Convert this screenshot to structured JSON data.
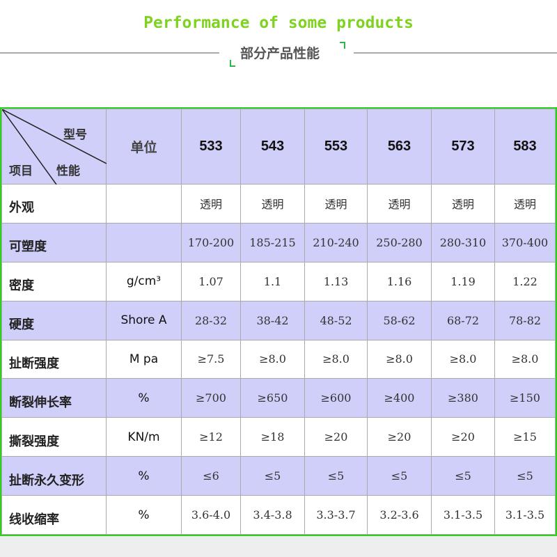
{
  "title": "Performance of some products",
  "subtitle": "部分产品性能",
  "table": {
    "corner": {
      "model": "型号",
      "item": "项目",
      "property": "性能"
    },
    "unit_header": "单位",
    "models": [
      "533",
      "543",
      "553",
      "563",
      "573",
      "583"
    ],
    "rows": [
      {
        "label": "外观",
        "unit": "",
        "values": [
          "透明",
          "透明",
          "透明",
          "透明",
          "透明",
          "透明"
        ]
      },
      {
        "label": "可塑度",
        "unit": "",
        "values": [
          "170-200",
          "185-215",
          "210-240",
          "250-280",
          "280-310",
          "370-400"
        ]
      },
      {
        "label": "密度",
        "unit": "g/cm³",
        "values": [
          "1.07",
          "1.1",
          "1.13",
          "1.16",
          "1.19",
          "1.22"
        ]
      },
      {
        "label": "硬度",
        "unit": "Shore A",
        "values": [
          "28-32",
          "38-42",
          "48-52",
          "58-62",
          "68-72",
          "78-82"
        ]
      },
      {
        "label": "扯断强度",
        "unit": "M pa",
        "values": [
          "≥7.5",
          "≥8.0",
          "≥8.0",
          "≥8.0",
          "≥8.0",
          "≥8.0"
        ]
      },
      {
        "label": "断裂伸长率",
        "unit": "%",
        "values": [
          "≥700",
          "≥650",
          "≥600",
          "≥400",
          "≥380",
          "≥150"
        ]
      },
      {
        "label": "撕裂强度",
        "unit": "KN/m",
        "values": [
          "≥12",
          "≥18",
          "≥20",
          "≥20",
          "≥20",
          "≥15"
        ]
      },
      {
        "label": "扯断永久变形",
        "unit": "%",
        "values": [
          "≤6",
          "≤5",
          "≤5",
          "≤5",
          "≤5",
          "≤5"
        ]
      },
      {
        "label": "线收缩率",
        "unit": "%",
        "values": [
          "3.6-4.0",
          "3.4-3.8",
          "3.3-3.7",
          "3.2-3.6",
          "3.1-3.5",
          "3.1-3.5"
        ]
      }
    ]
  },
  "colors": {
    "title": "#7ed321",
    "row_highlight": "#cfcffa",
    "table_border": "#2bd11c"
  }
}
